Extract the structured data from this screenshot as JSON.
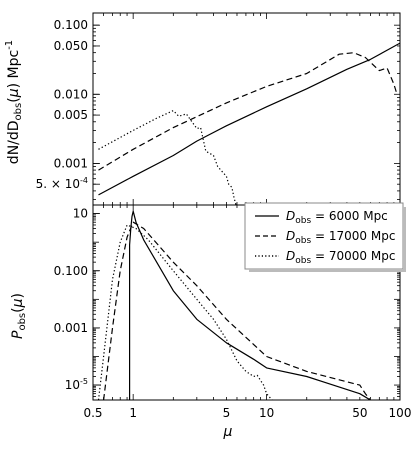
{
  "chart_data": [
    {
      "type": "line",
      "xscale": "log",
      "yscale": "log",
      "xlim": [
        0.5,
        100
      ],
      "ylim": [
        0.00025,
        0.15
      ],
      "ylabel": "dN/dD_obs(μ) Mpc^-1",
      "yticks": [
        {
          "value": 0.0005,
          "label": "5. × 10^-4"
        },
        {
          "value": 0.001,
          "label": "0.001"
        },
        {
          "value": 0.005,
          "label": "0.005"
        },
        {
          "value": 0.01,
          "label": "0.010"
        },
        {
          "value": 0.05,
          "label": "0.050"
        },
        {
          "value": 0.1,
          "label": "0.100"
        }
      ],
      "series": [
        {
          "style": "solid",
          "x": [
            0.55,
            1,
            2,
            3,
            5,
            10,
            20,
            40,
            60,
            100
          ],
          "y": [
            0.00035,
            0.00065,
            0.0013,
            0.0021,
            0.0035,
            0.0066,
            0.012,
            0.023,
            0.032,
            0.055
          ]
        },
        {
          "style": "dashed",
          "x": [
            0.55,
            1,
            2,
            5,
            10,
            20,
            35,
            45,
            55,
            70,
            80,
            90,
            95
          ],
          "y": [
            0.0008,
            0.0016,
            0.0033,
            0.0075,
            0.013,
            0.02,
            0.038,
            0.04,
            0.034,
            0.022,
            0.024,
            0.014,
            0.01
          ]
        },
        {
          "style": "dotted",
          "x": [
            0.55,
            1,
            1.5,
            2,
            2.2,
            2.5,
            3,
            3.2,
            3.5,
            4,
            4.3,
            5,
            5.2,
            5.5,
            5.7,
            5.9
          ],
          "y": [
            0.0016,
            0.003,
            0.0045,
            0.0058,
            0.0048,
            0.0052,
            0.0032,
            0.0033,
            0.0015,
            0.0013,
            0.0009,
            0.00065,
            0.0005,
            0.00045,
            0.00032,
            0.00025
          ]
        }
      ]
    },
    {
      "type": "line",
      "xscale": "log",
      "yscale": "log",
      "xlim": [
        0.5,
        100
      ],
      "ylim": [
        3e-06,
        20
      ],
      "xlabel": "μ",
      "ylabel": "P_obs(μ)",
      "xticks": [
        {
          "value": 0.5,
          "label": "0.5"
        },
        {
          "value": 1,
          "label": "1"
        },
        {
          "value": 5,
          "label": "5"
        },
        {
          "value": 10,
          "label": "10"
        },
        {
          "value": 50,
          "label": "50"
        },
        {
          "value": 100,
          "label": "100"
        }
      ],
      "yticks": [
        {
          "value": 1e-05,
          "label": "10^-5"
        },
        {
          "value": 0.001,
          "label": "0.001"
        },
        {
          "value": 0.1,
          "label": "0.100"
        },
        {
          "value": 10,
          "label": "10"
        }
      ],
      "legend": {
        "position": "top-right",
        "entries": [
          {
            "style": "solid",
            "label": "D_obs = 6000 Mpc"
          },
          {
            "style": "dashed",
            "label": "D_obs = 17000 Mpc"
          },
          {
            "style": "dotted",
            "label": "D_obs = 70000 Mpc"
          }
        ]
      },
      "series": [
        {
          "style": "solid",
          "x": [
            0.94,
            0.94,
            0.96,
            0.98,
            1.0,
            1.05,
            1.2,
            1.5,
            2,
            3,
            5,
            8,
            10,
            20,
            50,
            60
          ],
          "y": [
            3e-06,
            0.8,
            3,
            8,
            12,
            5,
            1.2,
            0.2,
            0.02,
            0.002,
            0.0003,
            8e-05,
            4e-05,
            2e-05,
            5e-06,
            3e-06
          ]
        },
        {
          "style": "dashed",
          "x": [
            0.6,
            0.7,
            0.8,
            0.9,
            1,
            1.2,
            2,
            3,
            5,
            10,
            20,
            50,
            55,
            60
          ],
          "y": [
            3e-06,
            0.001,
            0.1,
            1.5,
            5,
            3,
            0.2,
            0.03,
            0.002,
            0.0001,
            3e-05,
            1e-05,
            5e-06,
            3e-06
          ]
        },
        {
          "style": "dotted",
          "x": [
            0.55,
            0.6,
            0.7,
            0.8,
            0.9,
            1.05,
            1.3,
            2,
            3,
            4,
            5,
            6,
            7,
            8,
            8.5,
            9.5,
            10,
            11
          ],
          "y": [
            3e-06,
            0.0001,
            0.05,
            1,
            4,
            3,
            1.2,
            0.1,
            0.01,
            0.002,
            0.0004,
            7e-05,
            3e-05,
            2e-05,
            2.2e-05,
            1e-05,
            5e-06,
            3e-06
          ]
        }
      ]
    }
  ]
}
